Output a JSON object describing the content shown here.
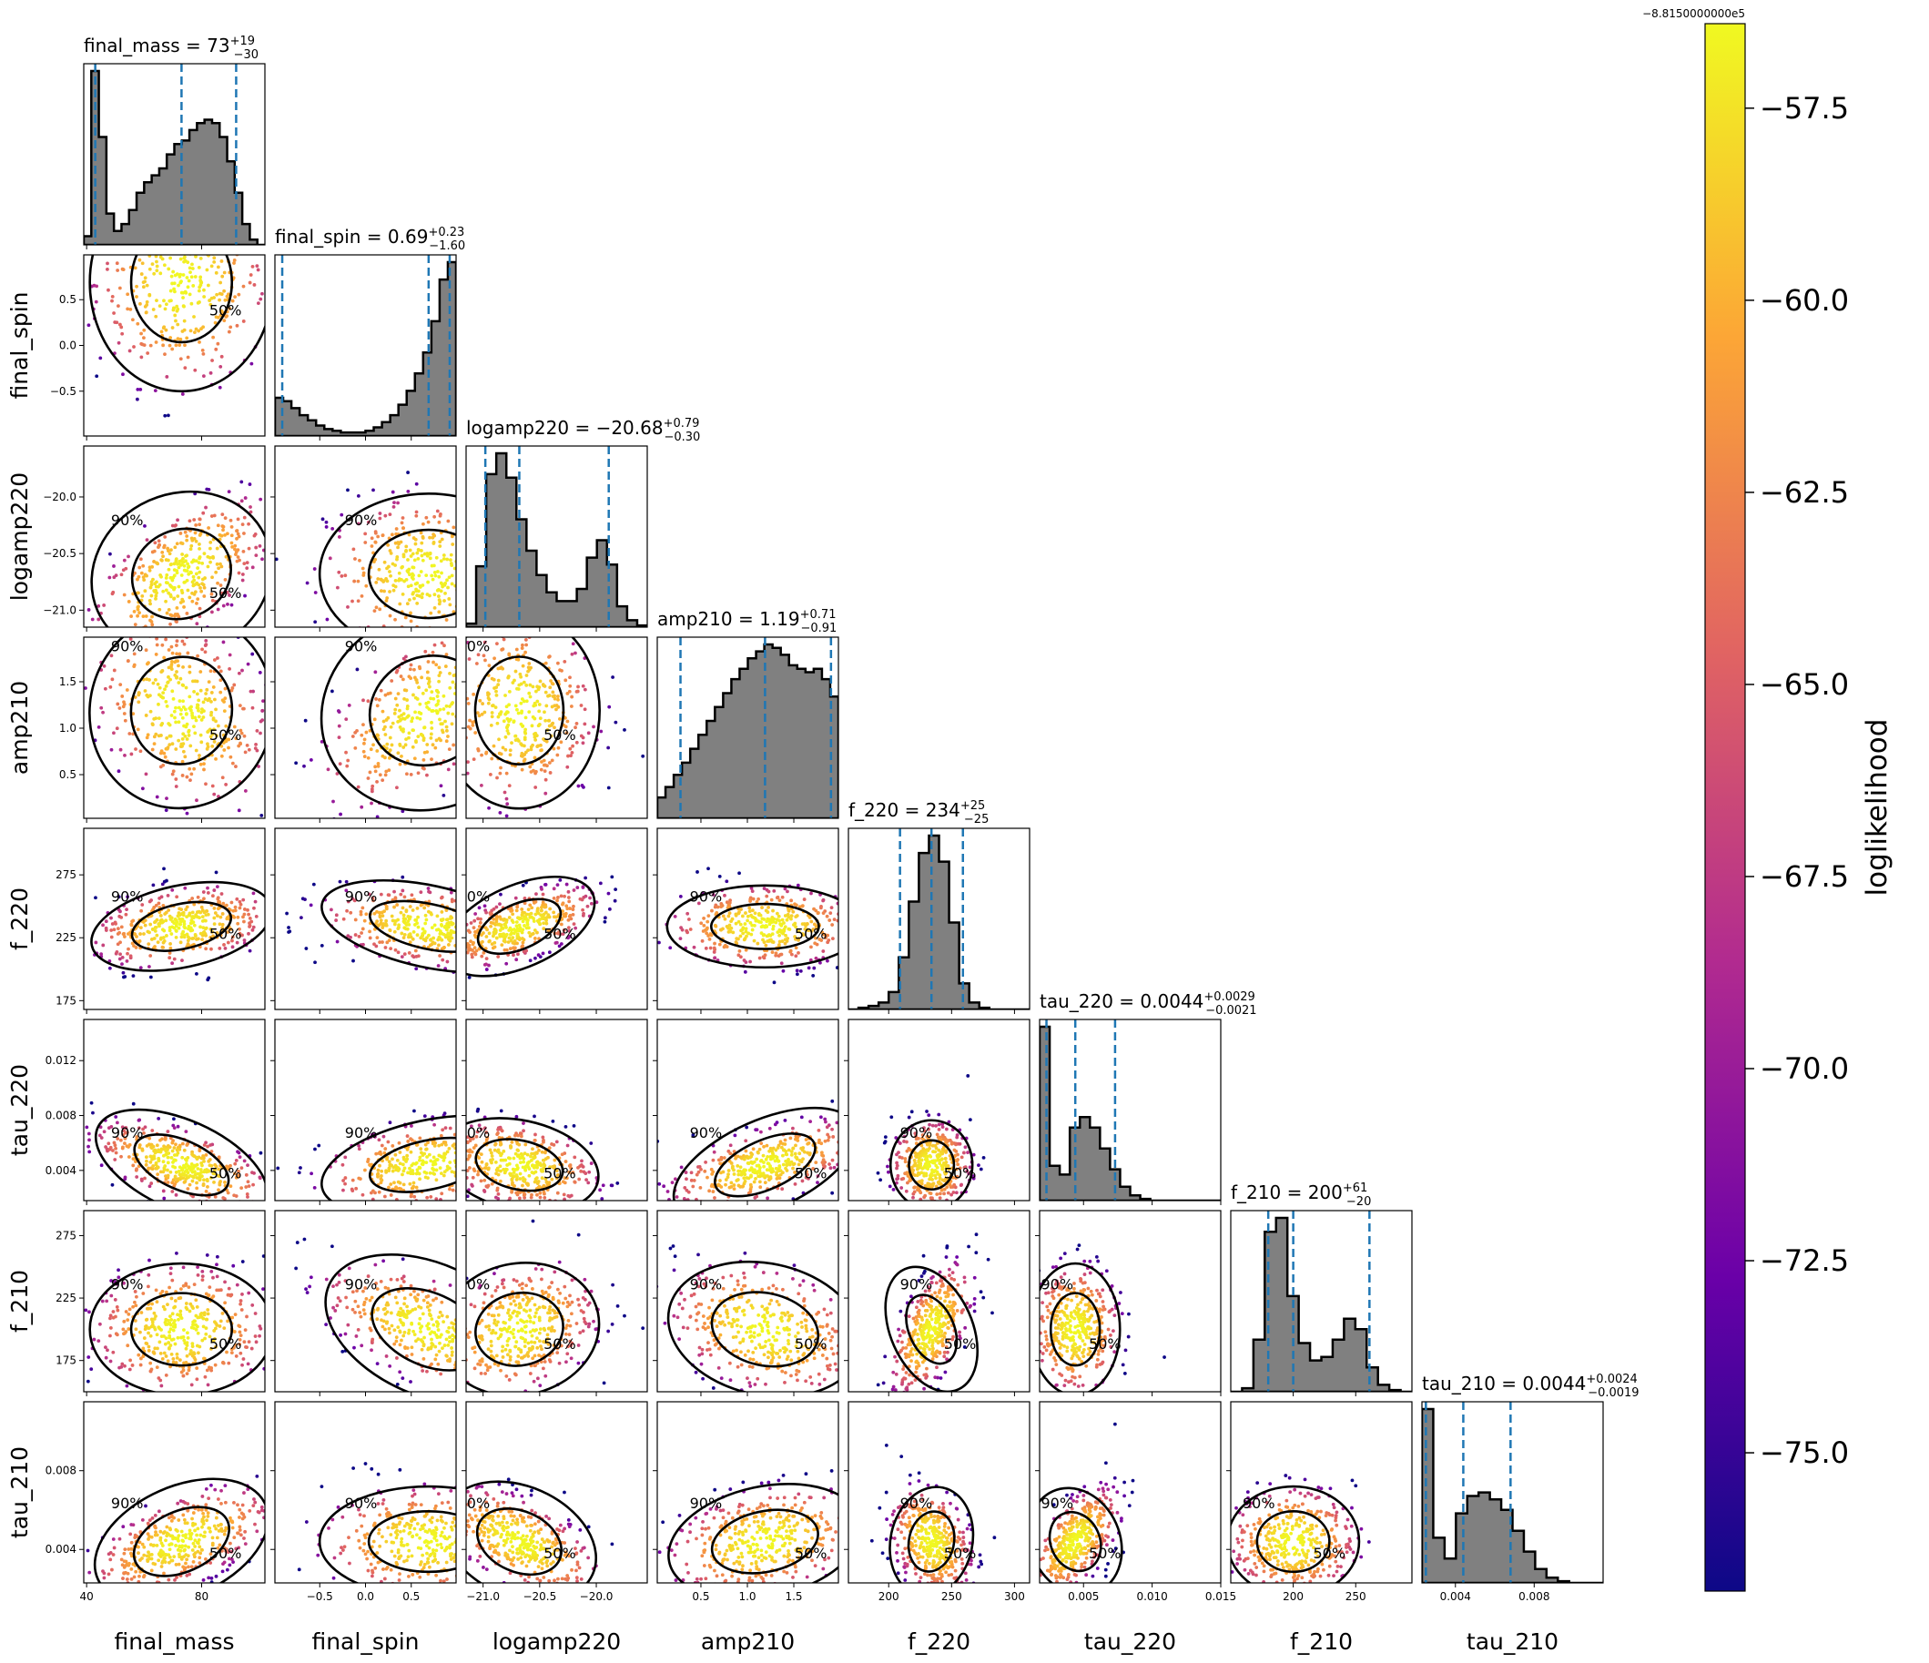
{
  "chart_data": {
    "type": "scatter",
    "subtype": "corner-plot",
    "parameters": [
      "final_mass",
      "final_spin",
      "logamp220",
      "amp210",
      "f_220",
      "tau_220",
      "f_210",
      "tau_210"
    ],
    "axis_labels": [
      "final_mass",
      "final_spin",
      "logamp220",
      "amp210",
      "f_220",
      "tau_220",
      "f_210",
      "tau_210"
    ],
    "ranges": {
      "final_mass": [
        39,
        102
      ],
      "final_spin": [
        -0.99,
        0.99
      ],
      "logamp220": [
        -21.15,
        -19.55
      ],
      "amp210": [
        0.03,
        1.98
      ],
      "f_220": [
        168,
        312
      ],
      "tau_220": [
        0.0018,
        0.015
      ],
      "f_210": [
        150,
        295
      ],
      "tau_210": [
        0.0023,
        0.0115
      ]
    },
    "ticks": {
      "final_mass": {
        "values": [
          40,
          80
        ],
        "labels": [
          "40",
          "80"
        ]
      },
      "final_spin": {
        "values": [
          -0.5,
          0.0,
          0.5
        ],
        "labels": [
          "−0.5",
          "0.0",
          "0.5"
        ]
      },
      "logamp220": {
        "values": [
          -21.0,
          -20.5,
          -20.0
        ],
        "labels": [
          "−21.0",
          "−20.5",
          "−20.0"
        ]
      },
      "amp210": {
        "values": [
          0.5,
          1.0,
          1.5
        ],
        "labels": [
          "0.5",
          "1.0",
          "1.5"
        ]
      },
      "f_220": {
        "values": [
          200,
          250,
          300
        ],
        "labels": [
          "200",
          "250",
          "300"
        ]
      },
      "tau_220": {
        "values": [
          0.005,
          0.01,
          0.015
        ],
        "labels": [
          "0.005",
          "0.010",
          "0.015"
        ]
      },
      "f_210": {
        "values": [
          200,
          250
        ],
        "labels": [
          "200",
          "250"
        ]
      },
      "tau_210": {
        "values": [
          0.004,
          0.008
        ],
        "labels": [
          "0.004",
          "0.008"
        ]
      }
    },
    "ytick_overrides": {
      "f_220": {
        "values": [
          175,
          225,
          275
        ],
        "labels": [
          "175",
          "225",
          "275"
        ]
      },
      "tau_220": {
        "values": [
          0.004,
          0.008,
          0.012
        ],
        "labels": [
          "0.004",
          "0.008",
          "0.012"
        ]
      },
      "f_210": {
        "values": [
          175,
          225,
          275
        ],
        "labels": [
          "175",
          "225",
          "275"
        ]
      }
    },
    "marginals": [
      {
        "param": "final_mass",
        "label": "final_mass = 73",
        "sup": "+19",
        "sub": "−30",
        "median": 73,
        "lo": 43,
        "hi": 92
      },
      {
        "param": "final_spin",
        "label": "final_spin = 0.69",
        "sup": "+0.23",
        "sub": "−1.60",
        "median": 0.69,
        "lo": -0.91,
        "hi": 0.92
      },
      {
        "param": "logamp220",
        "label": "logamp220 = −20.68",
        "sup": "+0.79",
        "sub": "−0.30",
        "median": -20.68,
        "lo": -20.98,
        "hi": -19.89
      },
      {
        "param": "amp210",
        "label": "amp210 = 1.19",
        "sup": "+0.71",
        "sub": "−0.91",
        "median": 1.19,
        "lo": 0.28,
        "hi": 1.9
      },
      {
        "param": "f_220",
        "label": "f_220 = 234",
        "sup": "+25",
        "sub": "−25",
        "median": 234,
        "lo": 209,
        "hi": 259
      },
      {
        "param": "tau_220",
        "label": "tau_220 = 0.0044",
        "sup": "+0.0029",
        "sub": "−0.0021",
        "median": 0.0044,
        "lo": 0.0023,
        "hi": 0.0073
      },
      {
        "param": "f_210",
        "label": "f_210 = 200",
        "sup": "+61",
        "sub": "−20",
        "median": 200,
        "lo": 180,
        "hi": 261
      },
      {
        "param": "tau_210",
        "label": "tau_210 = 0.0044",
        "sup": "+0.0024",
        "sub": "−0.0019",
        "median": 0.0044,
        "lo": 0.0025,
        "hi": 0.0068
      }
    ],
    "histograms": {
      "final_mass": [
        0.05,
        1.0,
        0.62,
        0.18,
        0.08,
        0.12,
        0.2,
        0.3,
        0.36,
        0.4,
        0.44,
        0.52,
        0.58,
        0.6,
        0.66,
        0.7,
        0.72,
        0.7,
        0.62,
        0.48,
        0.3,
        0.12,
        0.03,
        0.0
      ],
      "final_spin": [
        0.22,
        0.2,
        0.16,
        0.12,
        0.09,
        0.06,
        0.04,
        0.03,
        0.02,
        0.02,
        0.02,
        0.03,
        0.05,
        0.08,
        0.12,
        0.18,
        0.26,
        0.36,
        0.48,
        0.66,
        0.9,
        1.0
      ],
      "logamp220": [
        0.02,
        0.35,
        0.88,
        1.0,
        0.86,
        0.62,
        0.44,
        0.3,
        0.2,
        0.15,
        0.15,
        0.22,
        0.4,
        0.5,
        0.36,
        0.12,
        0.04,
        0.01
      ],
      "amp210": [
        0.12,
        0.18,
        0.25,
        0.32,
        0.4,
        0.48,
        0.56,
        0.64,
        0.72,
        0.8,
        0.86,
        0.92,
        0.96,
        1.0,
        0.98,
        0.94,
        0.88,
        0.86,
        0.84,
        0.86,
        0.8,
        0.7
      ],
      "f_220": [
        0.0,
        0.01,
        0.02,
        0.04,
        0.1,
        0.3,
        0.62,
        0.9,
        1.0,
        0.85,
        0.5,
        0.15,
        0.04,
        0.01,
        0.0,
        0.0,
        0.0,
        0.0
      ],
      "tau_220": [
        1.0,
        0.2,
        0.15,
        0.42,
        0.48,
        0.42,
        0.3,
        0.18,
        0.08,
        0.03,
        0.01,
        0.0,
        0.0,
        0.0,
        0.0,
        0.0,
        0.0,
        0.0
      ],
      "f_210": [
        0.0,
        0.02,
        0.3,
        0.92,
        1.0,
        0.55,
        0.28,
        0.18,
        0.2,
        0.3,
        0.42,
        0.36,
        0.14,
        0.04,
        0.01,
        0.0
      ],
      "tau_210": [
        1.0,
        0.26,
        0.14,
        0.4,
        0.5,
        0.52,
        0.48,
        0.42,
        0.3,
        0.18,
        0.08,
        0.03,
        0.01,
        0.0,
        0.0,
        0.0
      ]
    },
    "contour_levels": [
      "50%",
      "90%"
    ],
    "colorbar": {
      "label": "loglikelihood",
      "offset_label": "−8.8150000000e5",
      "cmap": "plasma",
      "range": [
        -76.8,
        -56.4
      ],
      "ticks": [
        -57.5,
        -60.0,
        -62.5,
        -65.0,
        -67.5,
        -70.0,
        -72.5,
        -75.0
      ],
      "tick_labels": [
        "−57.5",
        "−60.0",
        "−62.5",
        "−65.0",
        "−67.5",
        "−70.0",
        "−72.5",
        "−75.0"
      ]
    },
    "colors": {
      "hist_fill": "#808080",
      "hist_edge": "#000000",
      "quantile_lines": "#1f77b4",
      "contour": "#000000",
      "cmap_stops": [
        "#0d0887",
        "#6a00a8",
        "#b12a90",
        "#e16462",
        "#fca636",
        "#f0f921"
      ]
    }
  }
}
